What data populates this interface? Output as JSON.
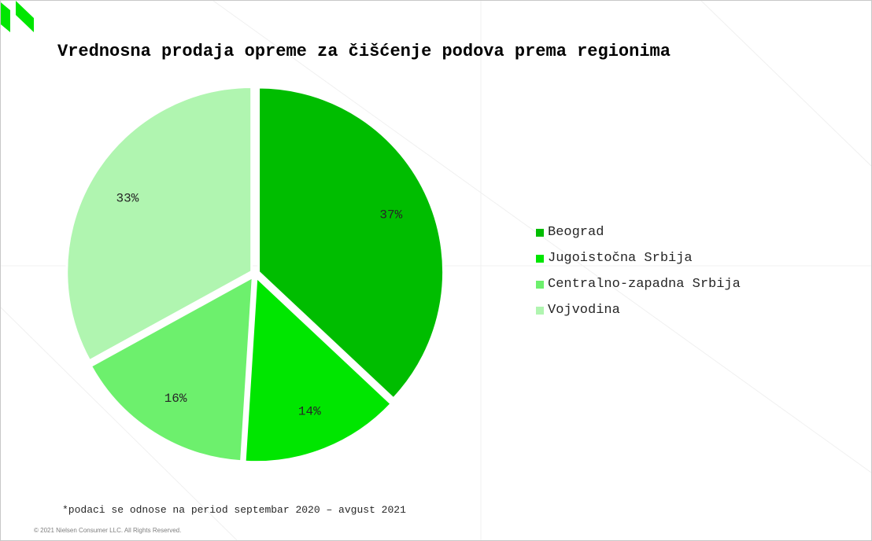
{
  "slide": {
    "footnote": "*podaci se odnose na period septembar 2020 – avgust 2021",
    "copyright": "© 2021 Nielsen Consumer LLC. All Rights Reserved.",
    "logo_color": "#00e600"
  },
  "chart_data": {
    "type": "pie",
    "title": "Vrednosna prodaja opreme za čišćenje podova prema regionima",
    "unit": "%",
    "legend_position": "right",
    "slices": [
      {
        "name": "Beograd",
        "value": 37,
        "label": "37%",
        "color": "#00bd00"
      },
      {
        "name": "Jugoistočna Srbija",
        "value": 14,
        "label": "14%",
        "color": "#00e600"
      },
      {
        "name": "Centralno-zapadna Srbija",
        "value": 16,
        "label": "16%",
        "color": "#6df06d"
      },
      {
        "name": "Vojvodina",
        "value": 33,
        "label": "33%",
        "color": "#b0f5b0"
      }
    ]
  }
}
